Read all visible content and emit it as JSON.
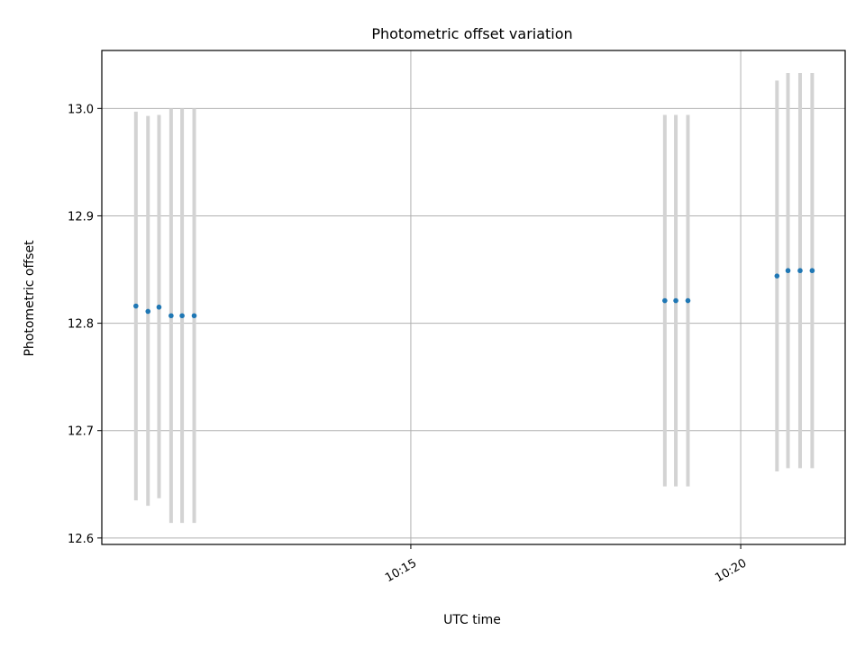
{
  "chart_data": {
    "type": "scatter",
    "title": "Photometric offset variation",
    "xlabel": "UTC time",
    "ylabel": "Photometric offset",
    "x_ticks": [
      "10:15",
      "10:20"
    ],
    "y_ticks": [
      "12.6",
      "12.7",
      "12.8",
      "12.9",
      "13.0"
    ],
    "xlim": [
      "10:10:19",
      "10:21:35"
    ],
    "ylim": [
      12.594,
      13.054
    ],
    "grid": true,
    "colors": {
      "points": "#1f77b4",
      "errorbars": "#d3d3d3",
      "grid": "#b0b0b0"
    },
    "series": [
      {
        "x": [
          "10:10:50",
          "10:11:01",
          "10:11:11",
          "10:11:22",
          "10:11:32",
          "10:11:43",
          "10:18:51",
          "10:19:01",
          "10:19:12",
          "10:20:33",
          "10:20:43",
          "10:20:54",
          "10:21:05"
        ],
        "y": [
          12.816,
          12.811,
          12.815,
          12.807,
          12.807,
          12.807,
          12.821,
          12.821,
          12.821,
          12.844,
          12.849,
          12.849,
          12.849
        ],
        "yerr_low": [
          12.635,
          12.63,
          12.637,
          12.614,
          12.614,
          12.614,
          12.648,
          12.648,
          12.648,
          12.662,
          12.665,
          12.665,
          12.665
        ],
        "yerr_high": [
          12.997,
          12.993,
          12.994,
          13.0,
          13.0,
          13.0,
          12.994,
          12.994,
          12.994,
          13.026,
          13.033,
          13.033,
          13.033
        ]
      }
    ]
  }
}
